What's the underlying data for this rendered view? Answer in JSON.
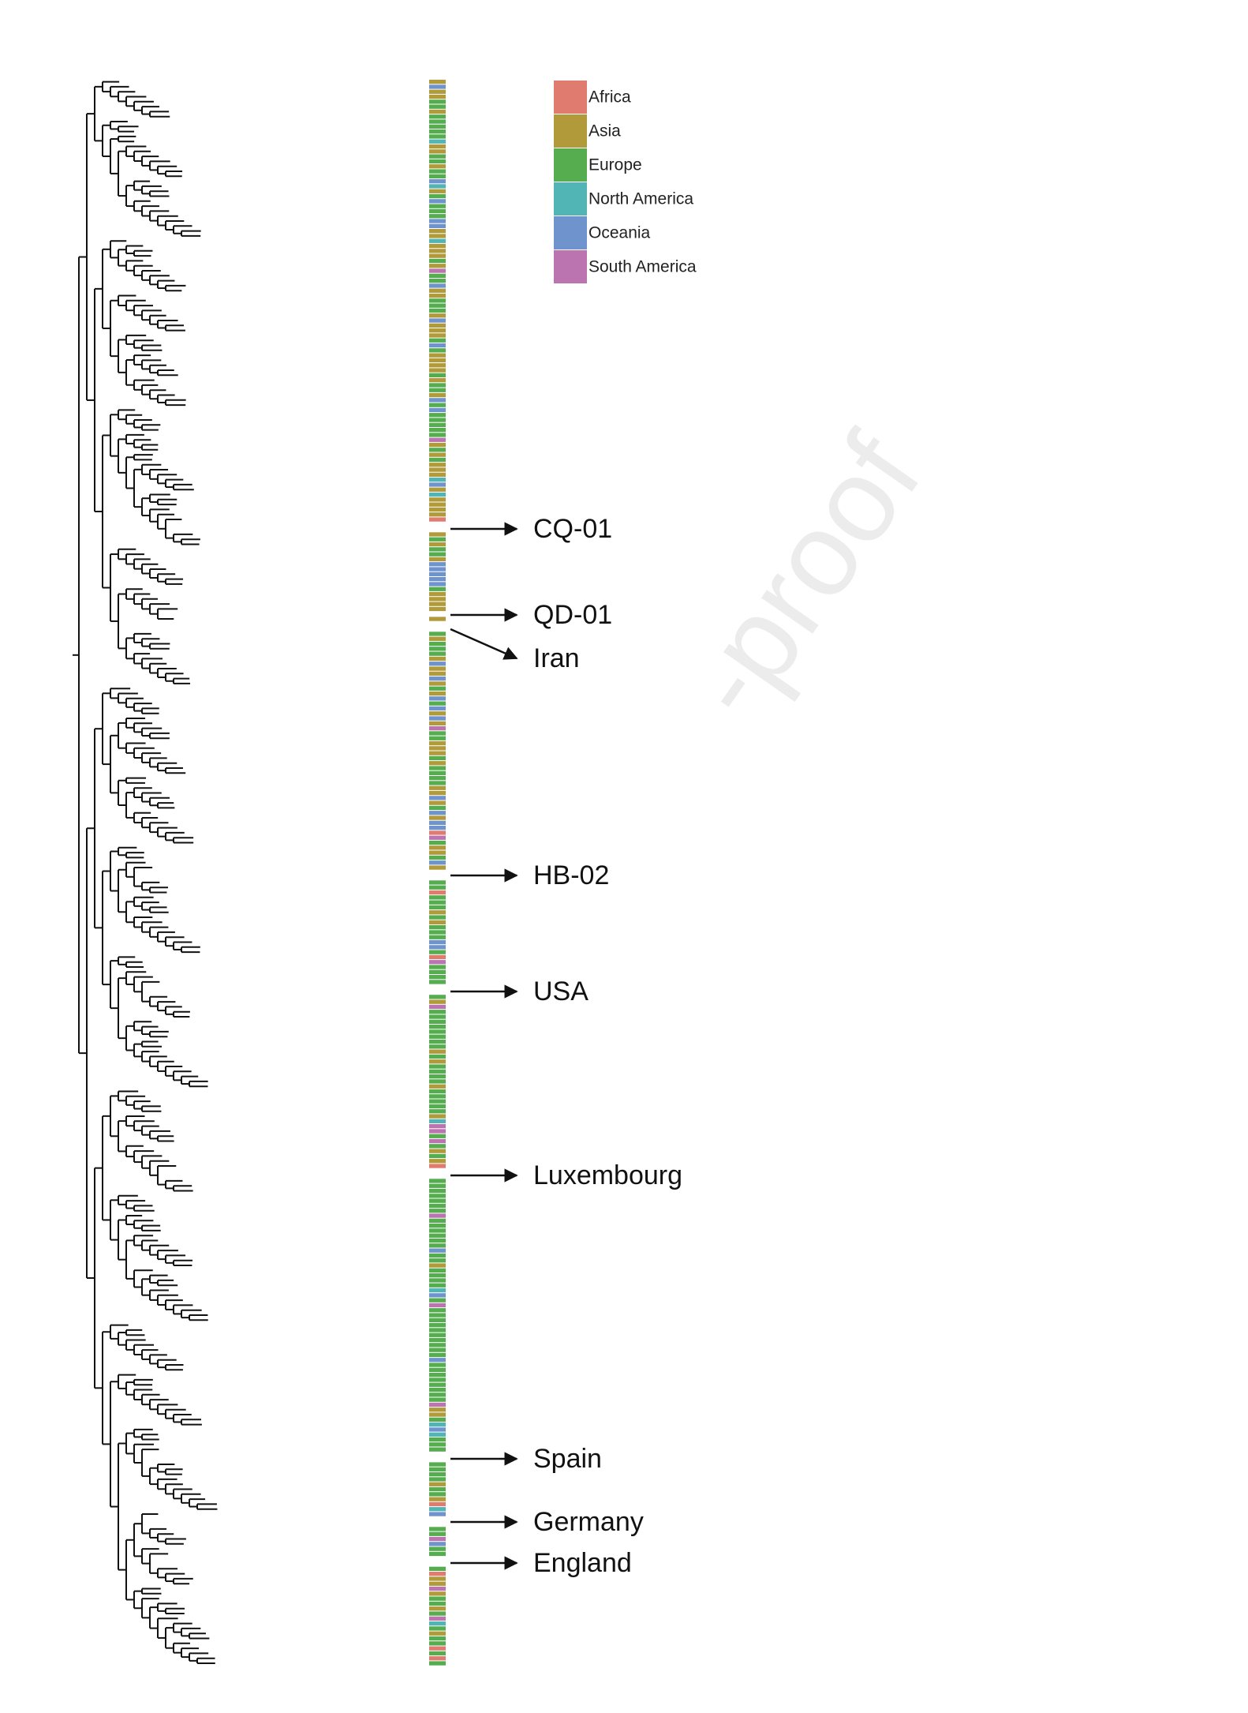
{
  "legend": [
    {
      "label": "Africa",
      "color": "#e07b70"
    },
    {
      "label": "Asia",
      "color": "#b09a3a"
    },
    {
      "label": "Europe",
      "color": "#55ad4f"
    },
    {
      "label": "North America",
      "color": "#52b5b5"
    },
    {
      "label": "Oceania",
      "color": "#6f93cc"
    },
    {
      "label": "South America",
      "color": "#bb74b0"
    }
  ],
  "annotations": [
    "CQ-01",
    "QD-01",
    "Iran",
    "HB-02",
    "USA",
    "Luxembourg",
    "Spain",
    "Germany",
    "England"
  ],
  "watermark": "-proof"
}
